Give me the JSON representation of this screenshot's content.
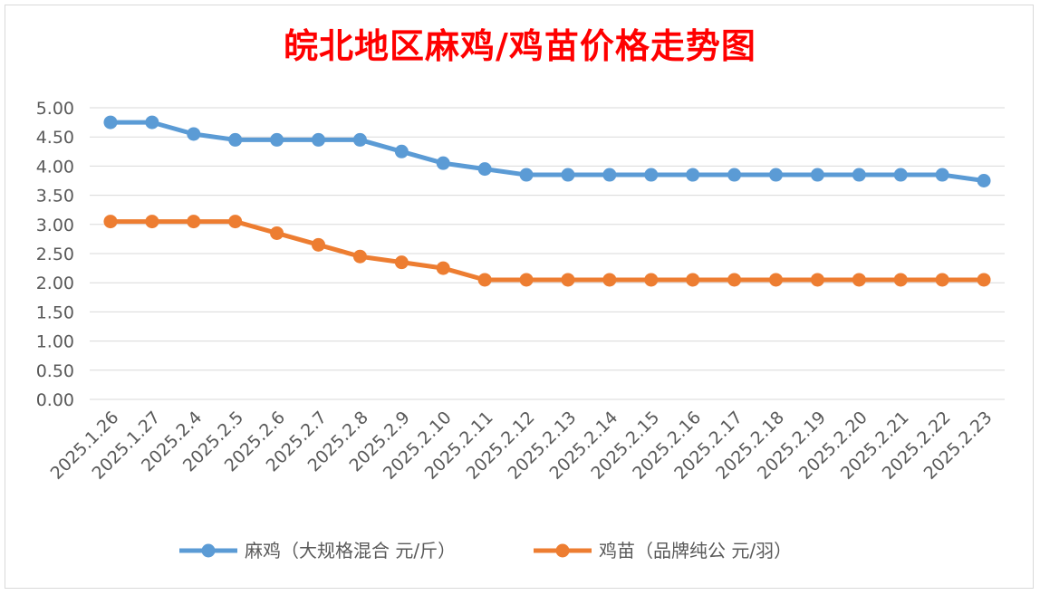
{
  "chart_data": {
    "type": "line",
    "title": "皖北地区麻鸡/鸡苗价格走势图",
    "xlabel": "",
    "ylabel": "",
    "ylim": [
      0,
      5
    ],
    "ytick_step": 0.5,
    "yticks": [
      "0.00",
      "0.50",
      "1.00",
      "1.50",
      "2.00",
      "2.50",
      "3.00",
      "3.50",
      "4.00",
      "4.50",
      "5.00"
    ],
    "grid": true,
    "legend_position": "bottom",
    "categories": [
      "2025.1.26",
      "2025.1.27",
      "2025.2.4",
      "2025.2.5",
      "2025.2.6",
      "2025.2.7",
      "2025.2.8",
      "2025.2.9",
      "2025.2.10",
      "2025.2.11",
      "2025.2.12",
      "2025.2.13",
      "2025.2.14",
      "2025.2.15",
      "2025.2.16",
      "2025.2.17",
      "2025.2.18",
      "2025.2.19",
      "2025.2.20",
      "2025.2.21",
      "2025.2.22",
      "2025.2.23"
    ],
    "series": [
      {
        "name": "麻鸡（大规格混合 元/斤）",
        "color": "#5b9bd5",
        "values": [
          4.75,
          4.75,
          4.55,
          4.45,
          4.45,
          4.45,
          4.45,
          4.25,
          4.05,
          3.95,
          3.85,
          3.85,
          3.85,
          3.85,
          3.85,
          3.85,
          3.85,
          3.85,
          3.85,
          3.85,
          3.85,
          3.75
        ]
      },
      {
        "name": "鸡苗（品牌纯公 元/羽）",
        "color": "#ed7d31",
        "values": [
          3.05,
          3.05,
          3.05,
          3.05,
          2.85,
          2.65,
          2.45,
          2.35,
          2.25,
          2.05,
          2.05,
          2.05,
          2.05,
          2.05,
          2.05,
          2.05,
          2.05,
          2.05,
          2.05,
          2.05,
          2.05,
          2.05
        ]
      }
    ]
  }
}
